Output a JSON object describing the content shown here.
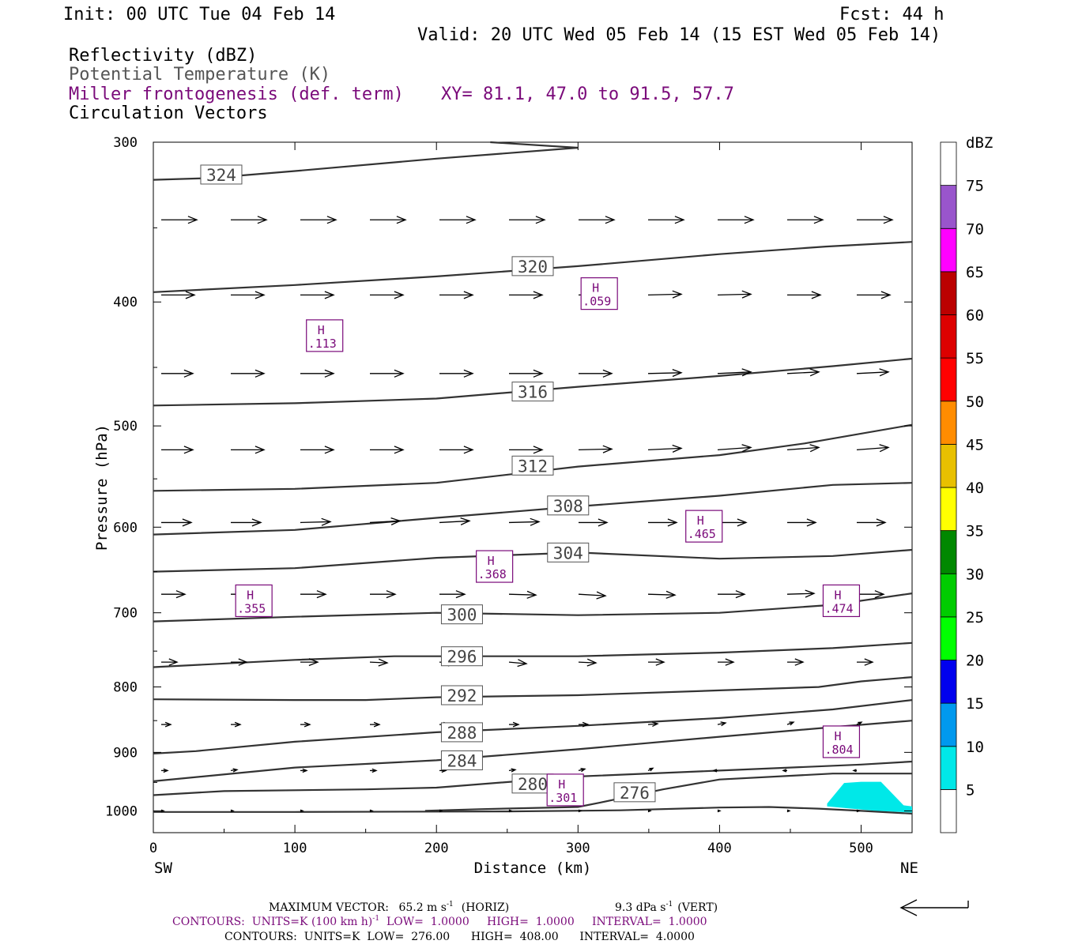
{
  "header": {
    "init": "Init: 00 UTC Tue 04 Feb 14",
    "fcst": "Fcst:   44 h",
    "valid": "Valid: 20 UTC Wed 05 Feb 14 (15 EST Wed 05 Feb 14)",
    "line1": "Reflectivity (dBZ)",
    "line2": "Potential Temperature (K)",
    "line3": "Miller frontogenesis (def. term)",
    "xy": "XY=  81.1, 47.0 to  91.5, 57.7",
    "line4": "Circulation Vectors"
  },
  "colors": {
    "purple": "#7a0a7a",
    "gray_text": "#555555",
    "contour": "#333333",
    "vector": "#000000",
    "echo": "#00e8e8"
  },
  "chart_data": {
    "type": "cross-section",
    "xlabel": "Distance (km)",
    "ylabel": "Pressure (hPa)",
    "xlim": [
      0,
      536
    ],
    "ylim": [
      300,
      1040
    ],
    "y_scale": "log-pressure (inverted)",
    "x_ticks": [
      0,
      100,
      200,
      300,
      400,
      500
    ],
    "y_ticks": [
      300,
      400,
      500,
      600,
      700,
      800,
      900,
      1000
    ],
    "x_end_labels": {
      "left": "SW",
      "right": "NE"
    },
    "theta_contours": [
      {
        "label": "324",
        "points": [
          [
            0,
            321
          ],
          [
            40,
            320
          ],
          [
            100,
            316
          ],
          [
            200,
            309
          ],
          [
            300,
            303
          ],
          [
            238,
            300
          ]
        ],
        "label_at": [
          48,
          318
        ]
      },
      {
        "label": "320",
        "points": [
          [
            0,
            393
          ],
          [
            100,
            388
          ],
          [
            200,
            382
          ],
          [
            300,
            375
          ],
          [
            400,
            367
          ],
          [
            475,
            362
          ],
          [
            536,
            359
          ]
        ],
        "label_at": [
          268,
          375
        ]
      },
      {
        "label": "316",
        "points": [
          [
            0,
            482
          ],
          [
            100,
            480
          ],
          [
            200,
            476
          ],
          [
            300,
            466
          ],
          [
            400,
            457
          ],
          [
            480,
            449
          ],
          [
            536,
            443
          ]
        ],
        "label_at": [
          268,
          470
        ]
      },
      {
        "label": "312",
        "points": [
          [
            0,
            562
          ],
          [
            100,
            560
          ],
          [
            200,
            554
          ],
          [
            300,
            538
          ],
          [
            400,
            527
          ],
          [
            460,
            516
          ],
          [
            536,
            499
          ]
        ],
        "label_at": [
          268,
          537
        ]
      },
      {
        "label": "308",
        "points": [
          [
            0,
            608
          ],
          [
            100,
            603
          ],
          [
            200,
            590
          ],
          [
            300,
            578
          ],
          [
            400,
            567
          ],
          [
            480,
            556
          ],
          [
            536,
            554
          ]
        ],
        "label_at": [
          293,
          577
        ]
      },
      {
        "label": "304",
        "points": [
          [
            0,
            650
          ],
          [
            100,
            646
          ],
          [
            200,
            634
          ],
          [
            300,
            628
          ],
          [
            400,
            635
          ],
          [
            480,
            632
          ],
          [
            536,
            625
          ]
        ],
        "label_at": [
          293,
          628
        ]
      },
      {
        "label": "300",
        "points": [
          [
            0,
            711
          ],
          [
            100,
            705
          ],
          [
            200,
            700
          ],
          [
            300,
            703
          ],
          [
            400,
            700
          ],
          [
            480,
            690
          ],
          [
            536,
            676
          ]
        ],
        "label_at": [
          218,
          702
        ]
      },
      {
        "label": "296",
        "points": [
          [
            0,
            772
          ],
          [
            100,
            762
          ],
          [
            170,
            757
          ],
          [
            300,
            757
          ],
          [
            400,
            752
          ],
          [
            480,
            746
          ],
          [
            536,
            739
          ]
        ],
        "label_at": [
          218,
          757
        ]
      },
      {
        "label": "292",
        "points": [
          [
            0,
            818
          ],
          [
            100,
            819
          ],
          [
            150,
            819
          ],
          [
            200,
            815
          ],
          [
            300,
            812
          ],
          [
            400,
            805
          ],
          [
            470,
            800
          ],
          [
            500,
            792
          ],
          [
            536,
            786
          ]
        ],
        "label_at": [
          218,
          812
        ]
      },
      {
        "label": "288",
        "points": [
          [
            0,
            902
          ],
          [
            30,
            898
          ],
          [
            100,
            883
          ],
          [
            200,
            868
          ],
          [
            300,
            858
          ],
          [
            400,
            846
          ],
          [
            480,
            833
          ],
          [
            536,
            819
          ]
        ],
        "label_at": [
          218,
          868
        ]
      },
      {
        "label": "284",
        "points": [
          [
            0,
            948
          ],
          [
            100,
            925
          ],
          [
            200,
            913
          ],
          [
            300,
            895
          ],
          [
            400,
            875
          ],
          [
            480,
            860
          ],
          [
            536,
            850
          ]
        ],
        "label_at": [
          218,
          913
        ]
      },
      {
        "label": "280",
        "points": [
          [
            0,
            972
          ],
          [
            50,
            965
          ],
          [
            150,
            962
          ],
          [
            200,
            959
          ],
          [
            300,
            940
          ],
          [
            400,
            930
          ],
          [
            500,
            920
          ],
          [
            536,
            915
          ]
        ],
        "label_at": [
          268,
          952
        ]
      },
      {
        "label": "276",
        "points": [
          [
            192,
            1000
          ],
          [
            230,
            997
          ],
          [
            300,
            993
          ],
          [
            316,
            985
          ],
          [
            360,
            962
          ],
          [
            400,
            945
          ],
          [
            480,
            935
          ],
          [
            536,
            935
          ]
        ],
        "label_at": [
          340,
          967
        ]
      },
      {
        "label": "",
        "points": [
          [
            0,
            1002
          ],
          [
            100,
            1002
          ],
          [
            250,
            1001
          ],
          [
            330,
            999
          ],
          [
            400,
            994
          ],
          [
            435,
            993
          ],
          [
            470,
            996
          ],
          [
            500,
            1000
          ],
          [
            536,
            1005
          ]
        ],
        "label_at": null
      }
    ],
    "frontogenesis_maxima": [
      {
        "label": "H",
        "value": ".113",
        "x": 121,
        "p": 425
      },
      {
        "label": "H",
        "value": ".059",
        "x": 315,
        "p": 394
      },
      {
        "label": "H",
        "value": ".465",
        "x": 389,
        "p": 599
      },
      {
        "label": "H",
        "value": ".368",
        "x": 241,
        "p": 644
      },
      {
        "label": "H",
        "value": ".355",
        "x": 71,
        "p": 685
      },
      {
        "label": "H",
        "value": ".474",
        "x": 486,
        "p": 685
      },
      {
        "label": "H",
        "value": ".804",
        "x": 486,
        "p": 883
      },
      {
        "label": "H",
        "value": ".301",
        "x": 291,
        "p": 963
      }
    ],
    "reflectivity": {
      "unit": "dBZ",
      "levels": [
        5,
        10,
        15,
        20,
        25,
        30,
        35,
        40,
        45,
        50,
        55,
        60,
        65,
        70,
        75
      ],
      "colors": [
        "#ffffff",
        "#00e8e8",
        "#0099ee",
        "#0000ee",
        "#00ff00",
        "#00cc00",
        "#008800",
        "#ffff00",
        "#e8c000",
        "#ff8c00",
        "#ff0000",
        "#dd0000",
        "#bb0000",
        "#ff00ff",
        "#9955cc",
        "#ffffff"
      ],
      "echo_region": [
        [
          476,
          987
        ],
        [
          488,
          951
        ],
        [
          500,
          949
        ],
        [
          514,
          949
        ],
        [
          530,
          990
        ],
        [
          536,
          992
        ],
        [
          536,
          1003
        ],
        [
          510,
          1000
        ],
        [
          476,
          992
        ]
      ]
    },
    "vector_rows": [
      {
        "p": 345,
        "lengths": [
          45,
          45,
          45,
          45,
          45,
          45,
          45,
          45,
          45,
          45,
          45
        ],
        "v": [
          0,
          0,
          0,
          0,
          0,
          0,
          0,
          0,
          0,
          0,
          0
        ]
      },
      {
        "p": 395,
        "lengths": [
          42,
          42,
          42,
          42,
          42,
          42,
          42,
          42,
          42,
          42,
          42
        ],
        "v": [
          0,
          0,
          0,
          0,
          0,
          0,
          1,
          1,
          1,
          0,
          0
        ]
      },
      {
        "p": 455,
        "lengths": [
          40,
          42,
          42,
          42,
          42,
          42,
          42,
          42,
          42,
          40,
          40
        ],
        "v": [
          0,
          0,
          0,
          0,
          0,
          0,
          0,
          1,
          2,
          2,
          2
        ]
      },
      {
        "p": 522,
        "lengths": [
          40,
          42,
          42,
          42,
          42,
          42,
          42,
          42,
          42,
          40,
          40
        ],
        "v": [
          0,
          0,
          0,
          0,
          0,
          0,
          1,
          2,
          3,
          3,
          3
        ]
      },
      {
        "p": 595,
        "lengths": [
          38,
          38,
          38,
          38,
          38,
          38,
          36,
          36,
          36,
          36,
          36
        ],
        "v": [
          0,
          0,
          1,
          2,
          2,
          1,
          0,
          0,
          0,
          0,
          0
        ]
      },
      {
        "p": 677,
        "lengths": [
          30,
          30,
          32,
          32,
          32,
          34,
          34,
          34,
          34,
          34,
          34
        ],
        "v": [
          0,
          0,
          0,
          0,
          0,
          -1,
          -2,
          -1,
          0,
          1,
          0
        ]
      },
      {
        "p": 765,
        "lengths": [
          20,
          20,
          22,
          22,
          22,
          22,
          22,
          20,
          20,
          20,
          20
        ],
        "v": [
          0,
          0,
          0,
          -1,
          -1,
          -2,
          -1,
          0,
          0,
          0,
          0
        ]
      },
      {
        "p": 856,
        "lengths": [
          12,
          12,
          12,
          12,
          12,
          12,
          12,
          12,
          10,
          8,
          6
        ],
        "v": [
          0,
          0,
          0,
          0,
          0,
          0,
          0,
          1,
          2,
          3,
          3
        ]
      },
      {
        "p": 930,
        "lengths": [
          8,
          8,
          8,
          8,
          8,
          8,
          8,
          6,
          -5,
          -5,
          -4
        ],
        "v": [
          0,
          1,
          0,
          0,
          0,
          1,
          2,
          3,
          0,
          0,
          0
        ]
      },
      {
        "p": 1000,
        "lengths": [
          3,
          3,
          3,
          3,
          3,
          3,
          3,
          3,
          3,
          3,
          3
        ],
        "v": [
          0,
          0,
          0,
          0,
          0,
          0,
          0,
          0,
          0,
          0,
          0
        ]
      }
    ]
  },
  "colorbar": {
    "title": "dBZ",
    "labels": [
      "75",
      "70",
      "65",
      "60",
      "55",
      "50",
      "45",
      "40",
      "35",
      "30",
      "25",
      "20",
      "15",
      "10",
      "5"
    ]
  },
  "footer": {
    "max_vector_label": "MAXIMUM VECTOR:",
    "max_vector_horiz": "65.2 m s",
    "horiz_note": "(HORIZ)",
    "max_vector_vert": "9.3 dPa s",
    "vert_note": "(VERT)",
    "sup_minus1": "-1",
    "contours1_a": "CONTOURS:  UNITS=K (100 km h)",
    "contours1_b": "  LOW=  1.0000     HIGH=  1.0000     INTERVAL=  1.0000",
    "contours2": "CONTOURS:  UNITS=K  LOW=  276.00      HIGH=  408.00      INTERVAL=  4.0000"
  }
}
